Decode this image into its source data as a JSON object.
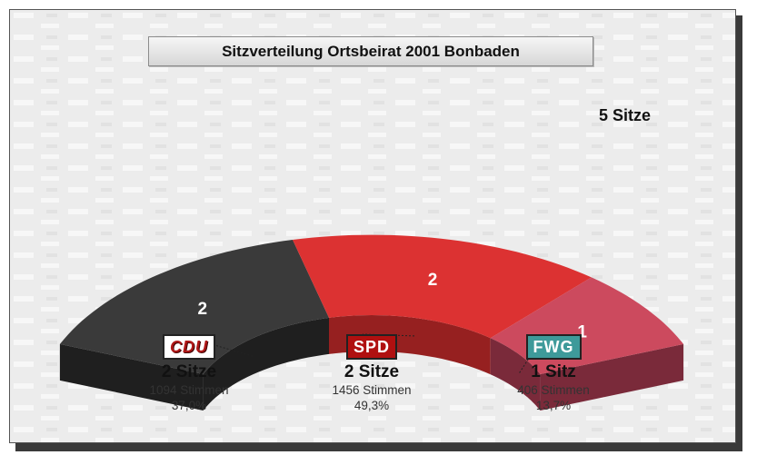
{
  "title": "Sitzverteilung Ortsbeirat 2001 Bonbaden",
  "total_label": "5 Sitze",
  "chart_data": {
    "type": "pie",
    "subtype": "half-donut-3d",
    "title": "Sitzverteilung Ortsbeirat 2001 Bonbaden",
    "total_seats": 5,
    "categories": [
      "CDU",
      "SPD",
      "FWG"
    ],
    "values": [
      2,
      2,
      1
    ],
    "colors": [
      "#3a3a3a",
      "#dc3232",
      "#cc4a5e"
    ],
    "side_colors": [
      "#1f1f1f",
      "#962020",
      "#7a2a3a"
    ]
  },
  "parties": [
    {
      "logo": "CDU",
      "seats": "2 Sitze",
      "votes": "1094 Stimmen",
      "pct": "37,0%",
      "seat_label": "2"
    },
    {
      "logo": "SPD",
      "seats": "2 Sitze",
      "votes": "1456 Stimmen",
      "pct": "49,3%",
      "seat_label": "2"
    },
    {
      "logo": "FWG",
      "seats": "1 Sitz",
      "votes": "406 Stimmen",
      "pct": "13,7%",
      "seat_label": "1"
    }
  ]
}
